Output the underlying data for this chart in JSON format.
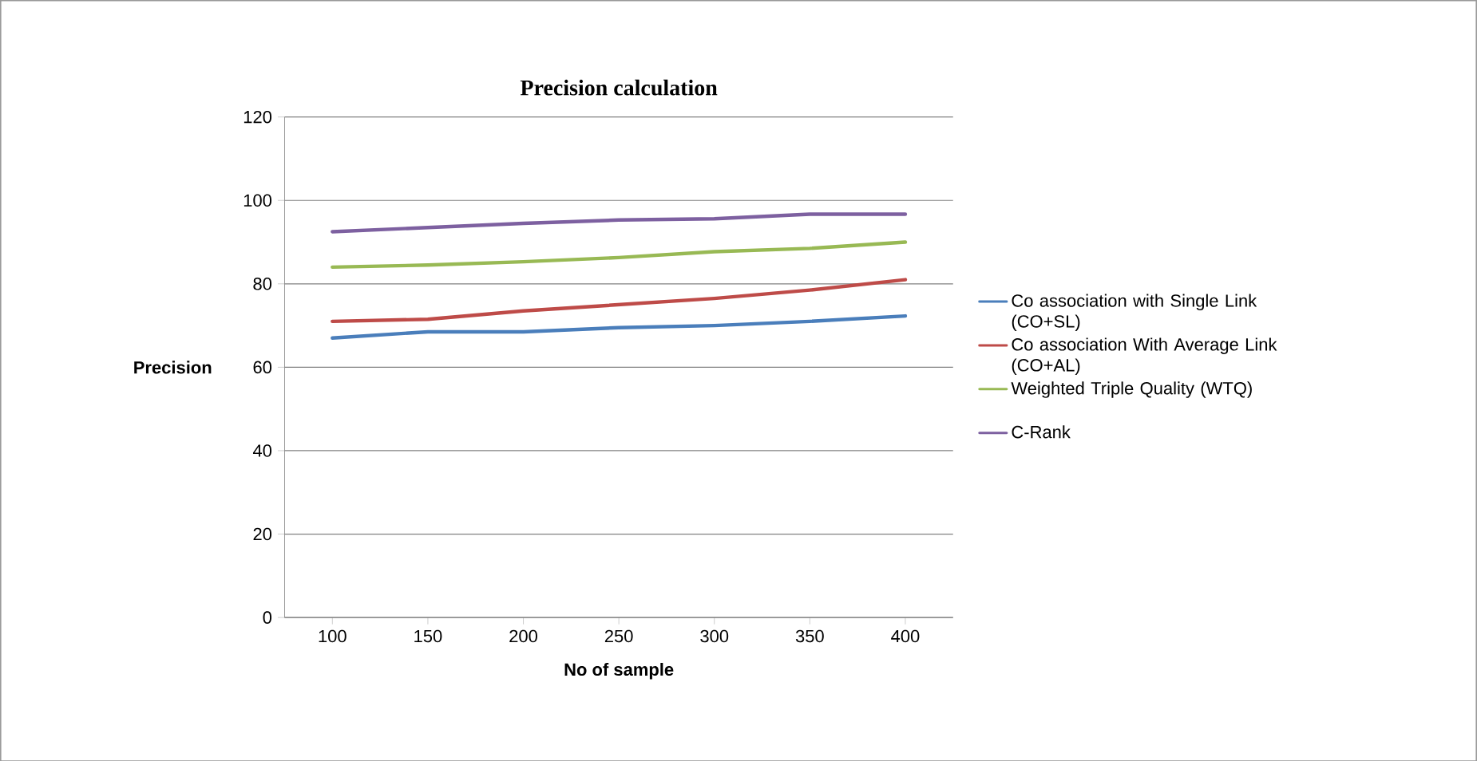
{
  "chart_data": {
    "type": "line",
    "title": "Precision calculation",
    "xlabel": "No of sample",
    "ylabel": "Precision",
    "categories": [
      "100",
      "150",
      "200",
      "250",
      "300",
      "350",
      "400"
    ],
    "series": [
      {
        "name": "Co association with Single Link (CO+SL)",
        "color": "#4a7ebb",
        "values": [
          67,
          68.5,
          68.5,
          69.5,
          70,
          71,
          72.3
        ]
      },
      {
        "name": "Co association With Average Link (CO+AL)",
        "color": "#be4b48",
        "values": [
          71,
          71.5,
          73.5,
          75,
          76.5,
          78.5,
          81
        ]
      },
      {
        "name": "Weighted Triple Quality (WTQ)",
        "color": "#98b954",
        "values": [
          84,
          84.5,
          85.3,
          86.3,
          87.7,
          88.5,
          90
        ]
      },
      {
        "name": "C-Rank",
        "color": "#7d60a0",
        "values": [
          92.5,
          93.5,
          94.5,
          95.3,
          95.6,
          96.7,
          96.7
        ]
      }
    ],
    "ylim": [
      0,
      120
    ],
    "yticks": [
      0,
      20,
      40,
      60,
      80,
      100,
      120
    ],
    "grid": "y",
    "legend": "right",
    "marker": "none",
    "line_style": "solid"
  }
}
